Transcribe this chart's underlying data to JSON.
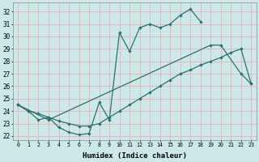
{
  "xlabel": "Humidex (Indice chaleur)",
  "bg_color": "#cde8e8",
  "grid_color": "#e8b0b0",
  "line_color": "#2d7070",
  "xlim": [
    -0.5,
    23.5
  ],
  "ylim": [
    21.7,
    32.7
  ],
  "yticks": [
    22,
    23,
    24,
    25,
    26,
    27,
    28,
    29,
    30,
    31,
    32
  ],
  "xticks": [
    0,
    1,
    2,
    3,
    4,
    5,
    6,
    7,
    8,
    9,
    10,
    11,
    12,
    13,
    14,
    15,
    16,
    17,
    18,
    19,
    20,
    21,
    22,
    23
  ],
  "line1_data": [
    [
      0,
      24.5
    ],
    [
      1,
      24.0
    ],
    [
      2,
      23.3
    ],
    [
      3,
      23.5
    ],
    [
      4,
      22.7
    ],
    [
      5,
      22.3
    ],
    [
      6,
      22.1
    ],
    [
      7,
      22.2
    ],
    [
      8,
      24.7
    ],
    [
      9,
      23.3
    ],
    [
      10,
      30.3
    ],
    [
      11,
      28.8
    ],
    [
      12,
      30.7
    ],
    [
      13,
      31.0
    ],
    [
      14,
      30.7
    ],
    [
      15,
      31.0
    ],
    [
      16,
      31.7
    ],
    [
      17,
      32.2
    ],
    [
      18,
      31.2
    ]
  ],
  "line2_data": [
    [
      0,
      24.5
    ],
    [
      3,
      23.3
    ],
    [
      19,
      29.3
    ],
    [
      20,
      29.3
    ],
    [
      22,
      27.0
    ],
    [
      23,
      26.2
    ]
  ],
  "line3_data": [
    [
      0,
      24.5
    ],
    [
      1,
      24.0
    ],
    [
      2,
      23.8
    ],
    [
      3,
      23.5
    ],
    [
      4,
      23.2
    ],
    [
      5,
      23.0
    ],
    [
      6,
      22.8
    ],
    [
      7,
      22.8
    ],
    [
      8,
      23.0
    ],
    [
      9,
      23.5
    ],
    [
      10,
      24.0
    ],
    [
      11,
      24.5
    ],
    [
      12,
      25.0
    ],
    [
      13,
      25.5
    ],
    [
      14,
      26.0
    ],
    [
      15,
      26.5
    ],
    [
      16,
      27.0
    ],
    [
      17,
      27.3
    ],
    [
      18,
      27.7
    ],
    [
      19,
      28.0
    ],
    [
      20,
      28.3
    ],
    [
      21,
      28.7
    ],
    [
      22,
      29.0
    ],
    [
      23,
      26.2
    ]
  ]
}
